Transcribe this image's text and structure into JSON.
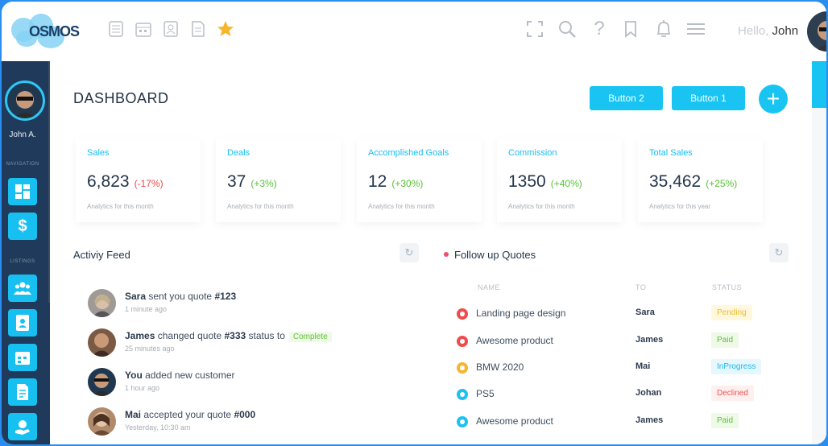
{
  "colors": {
    "accent": "#19c4f3",
    "sidebar": "#1f3a5a",
    "text": "#243648",
    "muted": "#a7adb4",
    "negative": "#e54949",
    "positive": "#57c236"
  },
  "header": {
    "logo_text": "OSMOS",
    "greeting": "Hello,",
    "user": "John",
    "left_icons": [
      "list-icon",
      "calendar-icon",
      "id-card-icon",
      "document-icon",
      "star-icon"
    ],
    "right_icons": [
      "fullscreen-icon",
      "search-icon",
      "help-icon",
      "bookmark-icon",
      "bell-icon",
      "menu-icon"
    ]
  },
  "sidebar": {
    "user_name": "John A.",
    "nav_label": "NAVIGATION",
    "listings_label": "LISTINGS",
    "buttons": [
      "dashboard-icon",
      "dollar-icon",
      "users-icon",
      "contact-icon",
      "calendar-icon",
      "invoice-icon",
      "hand-coin-icon"
    ]
  },
  "main": {
    "title": "DASHBOARD",
    "button2": "Button 2",
    "button1": "Button 1",
    "plus": "+"
  },
  "stats": [
    {
      "title": "Sales",
      "value": "6,823",
      "delta": "(-17%)",
      "delta_color": "#e54949",
      "sub": "Analytics for this month"
    },
    {
      "title": "Deals",
      "value": "37",
      "delta": "(+3%)",
      "delta_color": "#57c236",
      "sub": "Analytics for this month"
    },
    {
      "title": "Accomplished Goals",
      "value": "12",
      "delta": "(+30%)",
      "delta_color": "#57c236",
      "sub": "Analytics for this month"
    },
    {
      "title": "Commission",
      "value": "1350",
      "delta": "(+40%)",
      "delta_color": "#57c236",
      "sub": "Analytics for this month"
    },
    {
      "title": "Total Sales",
      "value": "35,462",
      "delta": "(+25%)",
      "delta_color": "#57c236",
      "sub": "Analytics for this year"
    }
  ],
  "activity": {
    "title": "Activiy Feed",
    "refresh_icon": "refresh-icon",
    "items": [
      {
        "name": "Sara",
        "text": "sent you quote",
        "quote": "#123",
        "time": "1 minute ago"
      },
      {
        "name": "James",
        "text": "changed quote",
        "quote": "#333",
        "text2": "status to",
        "tag": "Complete",
        "time": "25 minutes ago"
      },
      {
        "name": "You",
        "text": "added new customer",
        "quote": "",
        "time": "1 hour ago"
      },
      {
        "name": "Mai",
        "text": "accepted your quote",
        "quote": "#000",
        "time": "Yesterday, 10:30 am"
      }
    ]
  },
  "quotes": {
    "title": "Follow up Quotes",
    "refresh_icon": "refresh-icon",
    "columns": {
      "name": "NAME",
      "to": "TO",
      "status": "STATUS"
    },
    "rows": [
      {
        "name": "Landing page design",
        "to": "Sara",
        "status": "Pending",
        "dot": "#ef4d4d",
        "status_bg": "#fff8dc",
        "status_color": "#f0bc2c"
      },
      {
        "name": "Awesome product",
        "to": "James",
        "status": "Paid",
        "dot": "#ef4d4d",
        "status_bg": "#eef9e7",
        "status_color": "#57c236"
      },
      {
        "name": "BMW 2020",
        "to": "Mai",
        "status": "InProgress",
        "dot": "#f5b52e",
        "status_bg": "#e7f7fe",
        "status_color": "#1cb8ef"
      },
      {
        "name": "PS5",
        "to": "Johan",
        "status": "Declined",
        "dot": "#1fc1f0",
        "status_bg": "#fff0f0",
        "status_color": "#ef5454"
      },
      {
        "name": "Awesome product",
        "to": "James",
        "status": "Paid",
        "dot": "#1fc1f0",
        "status_bg": "#eef9e7",
        "status_color": "#57c236"
      }
    ]
  }
}
